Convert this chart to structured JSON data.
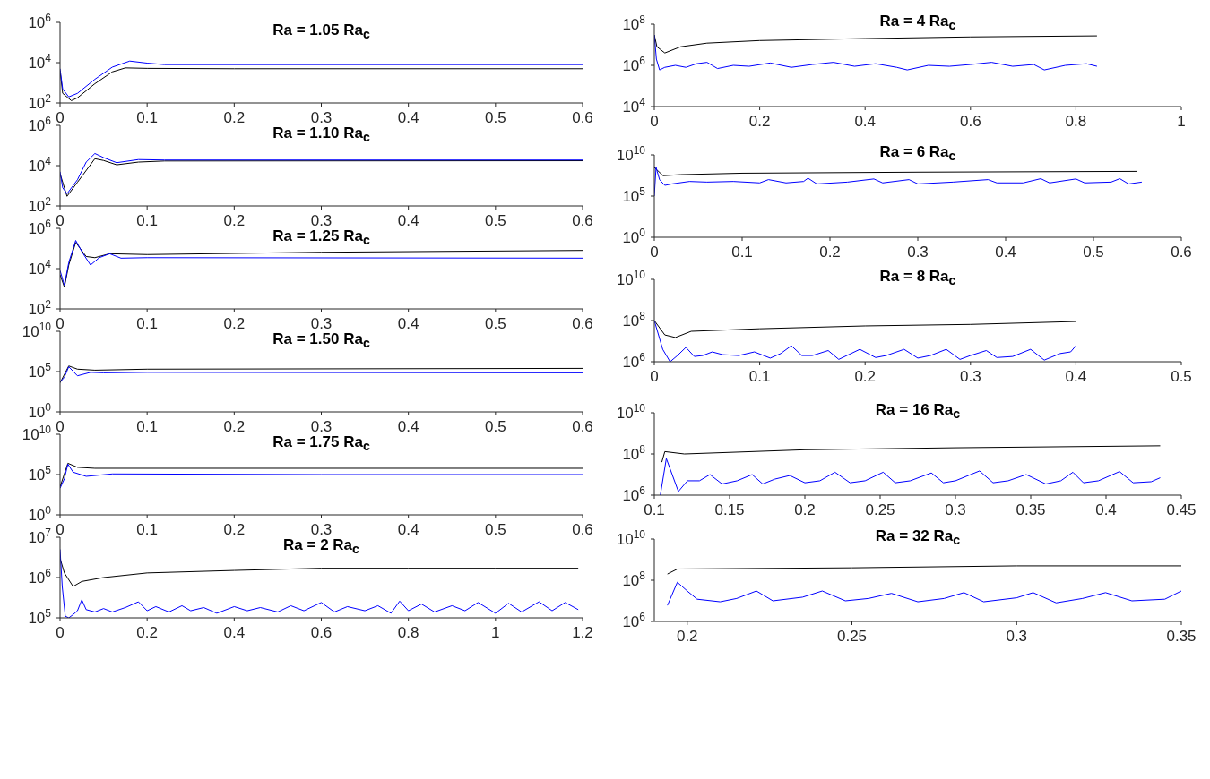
{
  "chart_data": [
    {
      "type": "line",
      "title": "Ra = 1.05 Ra$_{c}$",
      "log": "y",
      "xlim": [
        0,
        0.6
      ],
      "xticks": [
        0,
        0.1,
        0.2,
        0.3,
        0.4,
        0.5,
        0.6
      ],
      "ylim": [
        100,
        1000000
      ],
      "yticks": [
        {
          "value": 100,
          "label": "10$^{2}$"
        },
        {
          "value": 10000,
          "label": "10$^{4}$"
        },
        {
          "value": 1000000,
          "label": "10$^{6}$"
        }
      ],
      "series": [
        {
          "color": "#000000",
          "x": [
            0,
            0.003,
            0.013,
            0.02,
            0.04,
            0.06,
            0.075,
            0.1,
            0.2,
            0.6
          ],
          "values": [
            4000,
            300,
            130,
            180,
            900,
            3500,
            5500,
            5200,
            5000,
            5000
          ]
        },
        {
          "color": "#0000ff",
          "x": [
            0,
            0.003,
            0.01,
            0.02,
            0.04,
            0.06,
            0.08,
            0.1,
            0.12,
            0.6
          ],
          "values": [
            5000,
            500,
            200,
            300,
            1500,
            6000,
            12000,
            9500,
            8000,
            8000
          ]
        }
      ]
    },
    {
      "type": "line",
      "title": "Ra = 1.10 Ra$_{c}$",
      "log": "y",
      "xlim": [
        0,
        0.6
      ],
      "xticks": [
        0,
        0.1,
        0.2,
        0.3,
        0.4,
        0.5,
        0.6
      ],
      "ylim": [
        100,
        1000000
      ],
      "yticks": [
        {
          "value": 100,
          "label": "10$^{2}$"
        },
        {
          "value": 10000,
          "label": "10$^{4}$"
        },
        {
          "value": 1000000,
          "label": "10$^{6}$"
        }
      ],
      "series": [
        {
          "color": "#000000",
          "x": [
            0,
            0.008,
            0.02,
            0.04,
            0.05,
            0.065,
            0.09,
            0.12,
            0.6
          ],
          "values": [
            4000,
            300,
            1500,
            22000,
            18000,
            11000,
            15000,
            17000,
            17500
          ]
        },
        {
          "color": "#0000ff",
          "x": [
            0,
            0.003,
            0.008,
            0.02,
            0.03,
            0.04,
            0.05,
            0.065,
            0.09,
            0.12,
            0.6
          ],
          "values": [
            5000,
            800,
            400,
            2000,
            15000,
            40000,
            25000,
            14000,
            20000,
            19000,
            19000
          ]
        }
      ]
    },
    {
      "type": "line",
      "title": "Ra = 1.25 Ra$_{c}$",
      "log": "y",
      "xlim": [
        0,
        0.6
      ],
      "xticks": [
        0,
        0.1,
        0.2,
        0.3,
        0.4,
        0.5,
        0.6
      ],
      "ylim": [
        100,
        1000000
      ],
      "yticks": [
        {
          "value": 100,
          "label": "10$^{2}$"
        },
        {
          "value": 10000,
          "label": "10$^{4}$"
        },
        {
          "value": 1000000,
          "label": "10$^{6}$"
        }
      ],
      "series": [
        {
          "color": "#000000",
          "x": [
            0,
            0.005,
            0.01,
            0.018,
            0.03,
            0.04,
            0.057,
            0.1,
            0.3,
            0.6
          ],
          "values": [
            5000,
            1200,
            15000,
            200000,
            40000,
            35000,
            55000,
            50000,
            65000,
            80000
          ]
        },
        {
          "color": "#0000ff",
          "x": [
            0,
            0.005,
            0.01,
            0.018,
            0.025,
            0.035,
            0.045,
            0.057,
            0.07,
            0.1,
            0.6
          ],
          "values": [
            8000,
            1500,
            20000,
            250000,
            70000,
            15000,
            35000,
            55000,
            33000,
            35000,
            33000
          ]
        }
      ]
    },
    {
      "type": "line",
      "title": "Ra = 1.50 Ra$_{c}$",
      "log": "y",
      "xlim": [
        0,
        0.6
      ],
      "xticks": [
        0,
        0.1,
        0.2,
        0.3,
        0.4,
        0.5,
        0.6
      ],
      "ylim": [
        1,
        10000000000
      ],
      "yticks": [
        {
          "value": 1,
          "label": "10$^{0}$"
        },
        {
          "value": 100000,
          "label": "10$^{5}$"
        },
        {
          "value": 10000000000,
          "label": "10$^{10}$"
        }
      ],
      "series": [
        {
          "color": "#000000",
          "x": [
            0,
            0.01,
            0.02,
            0.04,
            0.1,
            0.6
          ],
          "values": [
            4000,
            500000,
            200000,
            150000,
            200000,
            250000
          ]
        },
        {
          "color": "#0000ff",
          "x": [
            0,
            0.005,
            0.01,
            0.02,
            0.035,
            0.05,
            0.1,
            0.6
          ],
          "values": [
            5000,
            20000,
            400000,
            30000,
            80000,
            70000,
            80000,
            70000
          ]
        }
      ]
    },
    {
      "type": "line",
      "title": "Ra = 1.75 Ra$_{c}$",
      "log": "y",
      "xlim": [
        0,
        0.6
      ],
      "xticks": [
        0,
        0.1,
        0.2,
        0.3,
        0.4,
        0.5,
        0.6
      ],
      "ylim": [
        1,
        10000000000
      ],
      "yticks": [
        {
          "value": 1,
          "label": "10$^{0}$"
        },
        {
          "value": 100000,
          "label": "10$^{5}$"
        },
        {
          "value": 10000000000,
          "label": "10$^{10}$"
        }
      ],
      "series": [
        {
          "color": "#000000",
          "x": [
            0,
            0.009,
            0.02,
            0.04,
            0.6
          ],
          "values": [
            3000,
            2500000,
            800000,
            600000,
            600000
          ]
        },
        {
          "color": "#0000ff",
          "x": [
            0,
            0.005,
            0.009,
            0.015,
            0.03,
            0.06,
            0.3,
            0.6
          ],
          "values": [
            2000,
            30000,
            2000000,
            200000,
            60000,
            120000,
            100000,
            100000
          ]
        }
      ]
    },
    {
      "type": "line",
      "title": "Ra = 2 Ra$_{c}$",
      "log": "y",
      "xlim": [
        0,
        1.2
      ],
      "xticks": [
        0,
        0.2,
        0.4,
        0.6,
        0.8,
        1,
        1.2
      ],
      "ylim": [
        100000,
        10000000
      ],
      "yticks": [
        {
          "value": 100000,
          "label": "10$^{5}$"
        },
        {
          "value": 1000000,
          "label": "10$^{6}$"
        },
        {
          "value": 10000000,
          "label": "10$^{7}$"
        }
      ],
      "series": [
        {
          "color": "#000000",
          "x": [
            0,
            0.01,
            0.03,
            0.05,
            0.1,
            0.2,
            0.4,
            0.6,
            0.8,
            1,
            1.19
          ],
          "values": [
            3000000,
            1300000,
            600000,
            800000,
            1000000,
            1300000,
            1500000,
            1700000,
            1700000,
            1700000,
            1700000
          ]
        },
        {
          "color": "#0000ff",
          "x": [
            0,
            0.005,
            0.012,
            0.02,
            0.03,
            0.04,
            0.05,
            0.06,
            0.08,
            0.1,
            0.12,
            0.15,
            0.18,
            0.2,
            0.22,
            0.25,
            0.28,
            0.3,
            0.33,
            0.36,
            0.4,
            0.43,
            0.46,
            0.5,
            0.53,
            0.56,
            0.6,
            0.63,
            0.66,
            0.7,
            0.73,
            0.76,
            0.78,
            0.8,
            0.83,
            0.86,
            0.9,
            0.93,
            0.96,
            1,
            1.03,
            1.06,
            1.1,
            1.13,
            1.16,
            1.19
          ],
          "values": [
            5000000.0,
            600000.0,
            110000.0,
            100000.0,
            120000.0,
            150000.0,
            280000.0,
            160000.0,
            140000.0,
            170000.0,
            140000.0,
            180000.0,
            250000.0,
            150000.0,
            190000.0,
            140000.0,
            200000.0,
            150000.0,
            180000.0,
            130000.0,
            190000.0,
            150000.0,
            180000.0,
            140000.0,
            200000.0,
            150000.0,
            240000.0,
            140000.0,
            190000.0,
            150000.0,
            200000.0,
            130000.0,
            260000.0,
            150000.0,
            220000.0,
            140000.0,
            200000.0,
            150000.0,
            240000.0,
            130000.0,
            230000.0,
            140000.0,
            250000.0,
            150000.0,
            240000.0,
            160000.0
          ]
        }
      ]
    },
    {
      "type": "line",
      "title": "Ra = 4 Ra$_{c}$",
      "log": "y",
      "xlim": [
        0,
        1
      ],
      "xticks": [
        0,
        0.2,
        0.4,
        0.6,
        0.8,
        1
      ],
      "ylim": [
        10000,
        100000000
      ],
      "yticks": [
        {
          "value": 10000,
          "label": "10$^{4}$"
        },
        {
          "value": 1000000,
          "label": "10$^{6}$"
        },
        {
          "value": 100000000,
          "label": "10$^{8}$"
        }
      ],
      "series": [
        {
          "color": "#000000",
          "x": [
            0,
            0.005,
            0.02,
            0.05,
            0.1,
            0.2,
            0.4,
            0.6,
            0.84
          ],
          "values": [
            30000000.0,
            8000000.0,
            4000000.0,
            8000000.0,
            12000000.0,
            16000000.0,
            20000000.0,
            24000000.0,
            27000000.0
          ]
        },
        {
          "color": "#0000ff",
          "x": [
            0,
            0.004,
            0.01,
            0.02,
            0.04,
            0.06,
            0.08,
            0.1,
            0.12,
            0.15,
            0.18,
            0.22,
            0.26,
            0.3,
            0.34,
            0.38,
            0.42,
            0.46,
            0.48,
            0.52,
            0.56,
            0.6,
            0.64,
            0.68,
            0.72,
            0.74,
            0.78,
            0.82,
            0.84
          ],
          "values": [
            30000000.0,
            2000000.0,
            600000.0,
            800000.0,
            1000000.0,
            800000.0,
            1200000.0,
            1400000.0,
            700000.0,
            1000000.0,
            900000.0,
            1300000.0,
            800000.0,
            1100000.0,
            1400000.0,
            900000.0,
            1200000.0,
            800000.0,
            600000.0,
            1000000.0,
            900000.0,
            1100000.0,
            1400000.0,
            900000.0,
            1100000.0,
            600000.0,
            1000000.0,
            1200000.0,
            900000.0
          ]
        }
      ]
    },
    {
      "type": "line",
      "title": "Ra = 6 Ra$_{c}$",
      "log": "y",
      "xlim": [
        0,
        0.6
      ],
      "xticks": [
        0,
        0.1,
        0.2,
        0.3,
        0.4,
        0.5,
        0.6
      ],
      "ylim": [
        1,
        10000000000
      ],
      "yticks": [
        {
          "value": 1,
          "label": "10$^{0}$"
        },
        {
          "value": 100000,
          "label": "10$^{5}$"
        },
        {
          "value": 10000000000,
          "label": "10$^{10}$"
        }
      ],
      "series": [
        {
          "color": "#000000",
          "x": [
            0,
            0.01,
            0.03,
            0.1,
            0.3,
            0.55
          ],
          "values": [
            300000000.0,
            30000000.0,
            40000000.0,
            60000000.0,
            80000000.0,
            100000000.0
          ]
        },
        {
          "color": "#0000ff",
          "x": [
            0,
            0.002,
            0.006,
            0.012,
            0.02,
            0.04,
            0.06,
            0.09,
            0.12,
            0.13,
            0.15,
            0.17,
            0.175,
            0.185,
            0.22,
            0.25,
            0.26,
            0.29,
            0.3,
            0.34,
            0.38,
            0.39,
            0.42,
            0.44,
            0.45,
            0.48,
            0.49,
            0.52,
            0.53,
            0.54,
            0.555
          ],
          "values": [
            100000.0,
            300000000.0,
            10000000.0,
            2000000.0,
            3000000.0,
            6000000.0,
            5000000.0,
            6000000.0,
            4000000.0,
            10000000.0,
            4000000.0,
            6000000.0,
            15000000.0,
            3000000.0,
            5000000.0,
            12000000.0,
            4000000.0,
            10000000.0,
            3000000.0,
            5000000.0,
            10000000.0,
            4000000.0,
            4000000.0,
            13000000.0,
            4000000.0,
            12000000.0,
            4000000.0,
            5000000.0,
            13000000.0,
            3000000.0,
            5000000.0
          ]
        }
      ]
    },
    {
      "type": "line",
      "title": "Ra = 8 Ra$_{c}$",
      "log": "y",
      "xlim": [
        0,
        0.5
      ],
      "xticks": [
        0,
        0.1,
        0.2,
        0.3,
        0.4,
        0.5
      ],
      "ylim": [
        1000000,
        10000000000
      ],
      "yticks": [
        {
          "value": 1000000,
          "label": "10$^{6}$"
        },
        {
          "value": 100000000,
          "label": "10$^{8}$"
        },
        {
          "value": 10000000000,
          "label": "10$^{10}$"
        }
      ],
      "series": [
        {
          "color": "#000000",
          "x": [
            0,
            0.01,
            0.02,
            0.035,
            0.1,
            0.2,
            0.3,
            0.4
          ],
          "values": [
            100000000.0,
            20000000.0,
            15000000.0,
            30000000.0,
            40000000.0,
            55000000.0,
            65000000.0,
            90000000.0
          ]
        },
        {
          "color": "#0000ff",
          "x": [
            0,
            0.008,
            0.015,
            0.022,
            0.03,
            0.038,
            0.046,
            0.055,
            0.065,
            0.08,
            0.095,
            0.11,
            0.12,
            0.13,
            0.14,
            0.15,
            0.165,
            0.175,
            0.195,
            0.21,
            0.22,
            0.237,
            0.25,
            0.262,
            0.277,
            0.29,
            0.3,
            0.315,
            0.325,
            0.34,
            0.357,
            0.37,
            0.385,
            0.395,
            0.4
          ],
          "values": [
            100000000.0,
            4000000.0,
            1000000.0,
            2000000.0,
            5000000.0,
            1800000.0,
            2000000.0,
            3000000.0,
            2200000.0,
            2000000.0,
            3000000.0,
            1500000.0,
            2500000.0,
            6000000.0,
            2000000.0,
            2000000.0,
            3500000.0,
            1300000.0,
            4000000.0,
            1600000.0,
            2000000.0,
            4000000.0,
            1500000.0,
            2000000.0,
            4000000.0,
            1300000.0,
            2000000.0,
            3500000.0,
            1600000.0,
            1800000.0,
            4000000.0,
            1200000.0,
            2500000.0,
            3000000.0,
            6000000.0
          ]
        }
      ]
    },
    {
      "type": "line",
      "title": "Ra = 16 Ra$_{c}$",
      "log": "y",
      "xlim": [
        0.1,
        0.45
      ],
      "xticks": [
        0.1,
        0.15,
        0.2,
        0.25,
        0.3,
        0.35,
        0.4,
        0.45
      ],
      "ylim": [
        1000000,
        10000000000
      ],
      "yticks": [
        {
          "value": 1000000,
          "label": "10$^{6}$"
        },
        {
          "value": 100000000,
          "label": "10$^{8}$"
        },
        {
          "value": 10000000000,
          "label": "10$^{10}$"
        }
      ],
      "series": [
        {
          "color": "#000000",
          "x": [
            0.105,
            0.107,
            0.12,
            0.2,
            0.3,
            0.436
          ],
          "values": [
            40000000.0,
            130000000.0,
            100000000.0,
            160000000.0,
            200000000.0,
            250000000.0
          ]
        },
        {
          "color": "#0000ff",
          "x": [
            0.104,
            0.108,
            0.116,
            0.122,
            0.13,
            0.137,
            0.145,
            0.155,
            0.165,
            0.172,
            0.18,
            0.19,
            0.2,
            0.21,
            0.22,
            0.23,
            0.24,
            0.252,
            0.26,
            0.27,
            0.284,
            0.292,
            0.3,
            0.316,
            0.325,
            0.335,
            0.347,
            0.36,
            0.37,
            0.378,
            0.385,
            0.395,
            0.409,
            0.418,
            0.43,
            0.436
          ],
          "values": [
            1000000.0,
            60000000.0,
            1500000.0,
            5000000.0,
            5000000.0,
            10000000.0,
            3500000.0,
            5000000.0,
            10000000.0,
            3500000.0,
            6000000.0,
            9000000.0,
            4000000.0,
            5000000.0,
            13000000.0,
            4000000.0,
            5000000.0,
            13000000.0,
            4000000.0,
            5000000.0,
            12000000.0,
            4000000.0,
            5000000.0,
            15000000.0,
            4000000.0,
            5000000.0,
            10000000.0,
            3500000.0,
            5000000.0,
            13000000.0,
            4000000.0,
            5000000.0,
            14000000.0,
            4000000.0,
            4500000.0,
            7000000.0
          ]
        }
      ]
    },
    {
      "type": "line",
      "title": "Ra = 32 Ra$_{c}$",
      "log": "y",
      "xlim": [
        0.19,
        0.35
      ],
      "xticks": [
        0.2,
        0.25,
        0.3,
        0.35
      ],
      "ylim": [
        1000000,
        10000000000
      ],
      "yticks": [
        {
          "value": 1000000,
          "label": "10$^{6}$"
        },
        {
          "value": 100000000,
          "label": "10$^{8}$"
        },
        {
          "value": 10000000000,
          "label": "10$^{10}$"
        }
      ],
      "series": [
        {
          "color": "#000000",
          "x": [
            0.194,
            0.197,
            0.25,
            0.3,
            0.35
          ],
          "values": [
            200000000.0,
            350000000.0,
            400000000.0,
            500000000.0,
            500000000.0
          ]
        },
        {
          "color": "#0000ff",
          "x": [
            0.194,
            0.197,
            0.2,
            0.203,
            0.21,
            0.215,
            0.221,
            0.226,
            0.235,
            0.241,
            0.248,
            0.255,
            0.262,
            0.27,
            0.278,
            0.284,
            0.29,
            0.3,
            0.305,
            0.312,
            0.32,
            0.327,
            0.335,
            0.345,
            0.35
          ],
          "values": [
            6000000.0,
            80000000.0,
            30000000.0,
            12000000.0,
            9000000.0,
            13000000.0,
            30000000.0,
            10000000.0,
            15000000.0,
            30000000.0,
            10000000.0,
            13000000.0,
            23000000.0,
            9000000.0,
            13000000.0,
            25000000.0,
            9000000.0,
            14000000.0,
            25000000.0,
            8000000.0,
            13000000.0,
            25000000.0,
            10000000.0,
            12000000.0,
            30000000.0
          ]
        }
      ]
    }
  ]
}
